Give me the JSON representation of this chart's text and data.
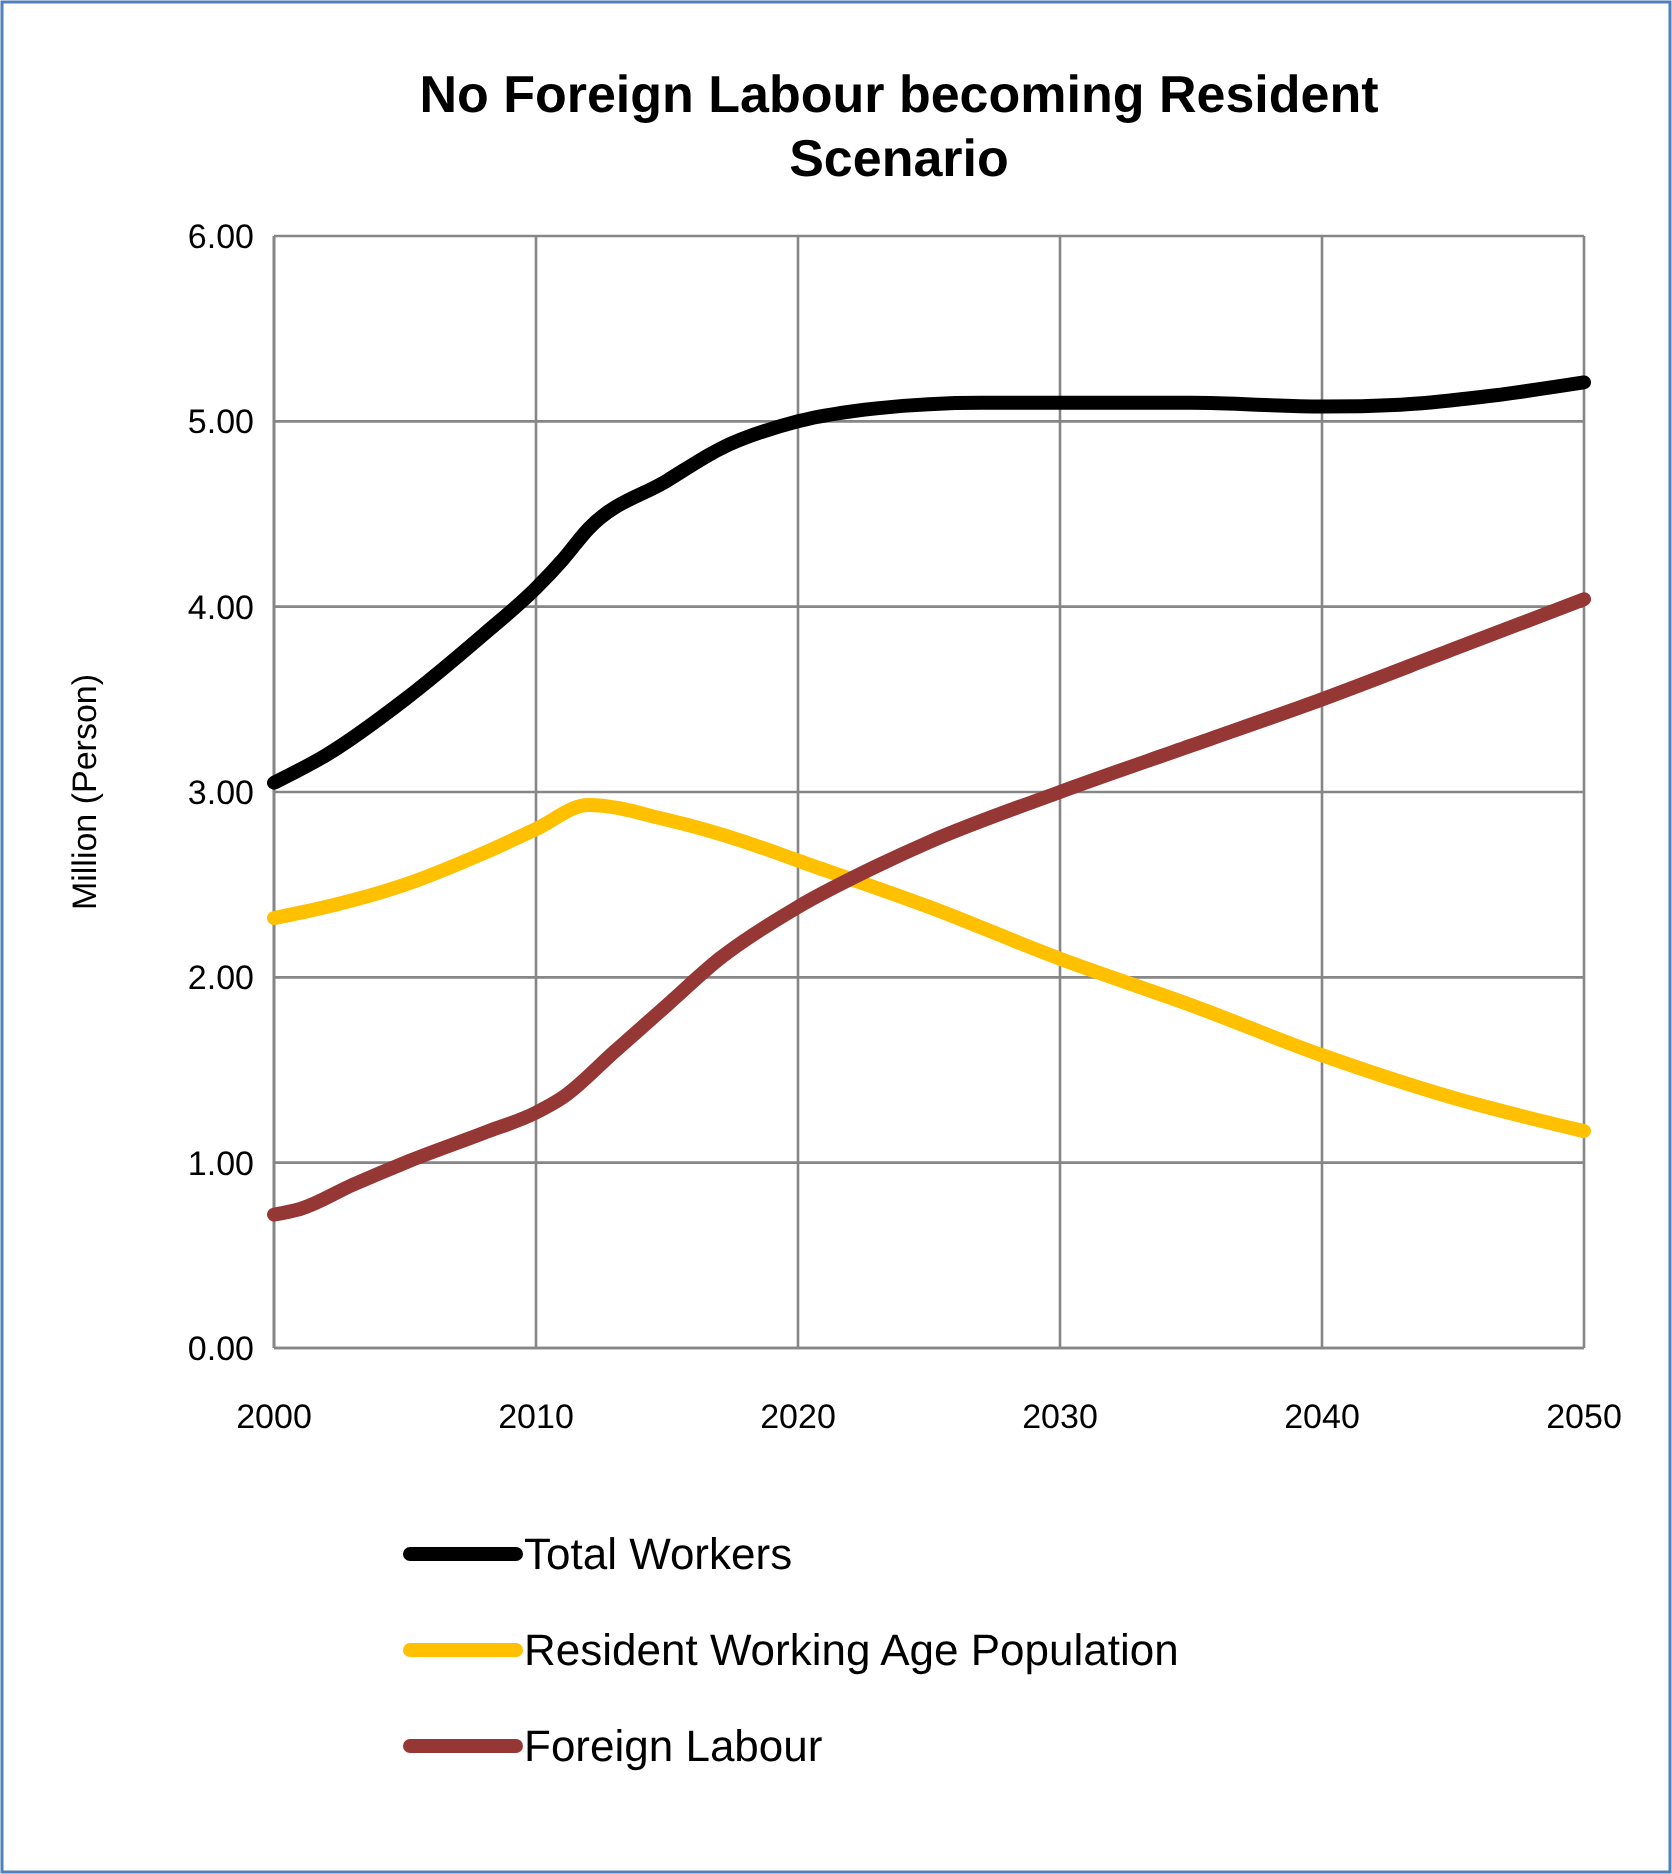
{
  "chart_data": {
    "type": "line",
    "title": "No Foreign Labour becoming Resident Scenario",
    "ylabel": "Million (Person)",
    "xlim": [
      2000,
      2050
    ],
    "xticks": [
      2000,
      2010,
      2020,
      2030,
      2040,
      2050
    ],
    "ylim": [
      0,
      6
    ],
    "yticks": [
      {
        "value": 0,
        "label": "0.00"
      },
      {
        "value": 1,
        "label": "1.00"
      },
      {
        "value": 2,
        "label": "2.00"
      },
      {
        "value": 3,
        "label": "3.00"
      },
      {
        "value": 4,
        "label": "4.00"
      },
      {
        "value": 5,
        "label": "5.00"
      },
      {
        "value": 6,
        "label": "6.00"
      }
    ],
    "grid": true,
    "legend": "bottom",
    "marker": "none",
    "line_style": "solid",
    "series": [
      {
        "name": "Total Workers",
        "color": "#000000",
        "x": [
          2000,
          2002,
          2005,
          2008,
          2010,
          2011,
          2012,
          2015,
          2017,
          2020,
          2023,
          2027,
          2030,
          2035,
          2040,
          2043,
          2046,
          2050
        ],
        "values": [
          3.05,
          3.2,
          3.5,
          3.85,
          4.1,
          4.25,
          4.42,
          4.68,
          4.85,
          5.0,
          5.07,
          5.1,
          5.1,
          5.1,
          5.08,
          5.09,
          5.13,
          5.21
        ]
      },
      {
        "name": "Resident Working Age Population",
        "color": "#ffc000",
        "x": [
          2000,
          2002,
          2005,
          2008,
          2010,
          2012,
          2015,
          2018,
          2020,
          2025,
          2030,
          2035,
          2040,
          2045,
          2050
        ],
        "values": [
          2.32,
          2.38,
          2.5,
          2.67,
          2.8,
          2.93,
          2.85,
          2.73,
          2.63,
          2.38,
          2.1,
          1.85,
          1.58,
          1.35,
          1.17
        ]
      },
      {
        "name": "Foreign Labour",
        "color": "#953735",
        "x": [
          2000,
          2001,
          2003,
          2005,
          2008,
          2010,
          2011,
          2013,
          2015,
          2017,
          2020,
          2023,
          2025,
          2030,
          2035,
          2040,
          2045,
          2050
        ],
        "values": [
          0.72,
          0.75,
          0.88,
          1.0,
          1.16,
          1.27,
          1.35,
          1.6,
          1.85,
          2.1,
          2.38,
          2.6,
          2.73,
          3.0,
          3.25,
          3.5,
          3.77,
          4.04
        ]
      }
    ]
  }
}
